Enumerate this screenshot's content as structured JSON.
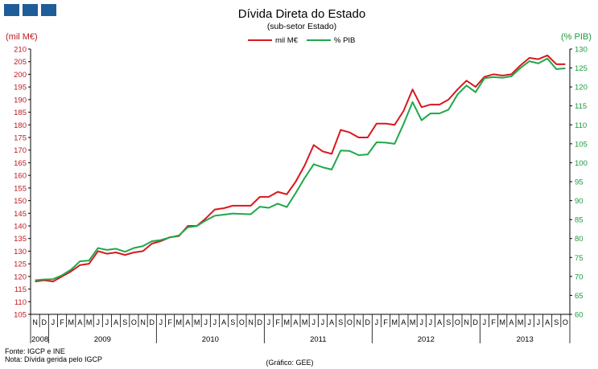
{
  "header": {
    "logo_name": "igcp-logo"
  },
  "chart_data": {
    "type": "line",
    "title": "Dívida Direta do Estado",
    "subtitle": "(sub-setor  Estado)",
    "ylabel_left": "(mil M€)",
    "ylabel_right": "(% PIB)",
    "ylim_left": [
      105,
      210
    ],
    "ylim_right": [
      60,
      130
    ],
    "yticks_left": [
      105,
      110,
      115,
      120,
      125,
      130,
      135,
      140,
      145,
      150,
      155,
      160,
      165,
      170,
      175,
      180,
      185,
      190,
      195,
      200,
      205,
      210
    ],
    "yticks_right": [
      60,
      65,
      70,
      75,
      80,
      85,
      90,
      95,
      100,
      105,
      110,
      115,
      120,
      125,
      130
    ],
    "legend_placement": "top",
    "month_labels": [
      "N",
      "D",
      "J",
      "F",
      "M",
      "A",
      "M",
      "J",
      "J",
      "A",
      "S",
      "O",
      "N",
      "D",
      "J",
      "F",
      "M",
      "A",
      "M",
      "J",
      "J",
      "A",
      "S",
      "O",
      "N",
      "D",
      "J",
      "F",
      "M",
      "A",
      "M",
      "J",
      "J",
      "A",
      "S",
      "O",
      "N",
      "D",
      "J",
      "F",
      "M",
      "A",
      "M",
      "J",
      "J",
      "A",
      "S",
      "O",
      "N",
      "D",
      "J",
      "F",
      "M",
      "A",
      "M",
      "J",
      "J",
      "A",
      "S",
      "O"
    ],
    "year_groups": [
      {
        "label": "2008",
        "count": 2
      },
      {
        "label": "2009",
        "count": 12
      },
      {
        "label": "2010",
        "count": 12
      },
      {
        "label": "2011",
        "count": 12
      },
      {
        "label": "2012",
        "count": 12
      },
      {
        "label": "2013",
        "count": 10
      }
    ],
    "series": [
      {
        "name": "mil M€",
        "axis": "left",
        "color": "#d9181e",
        "values": [
          118,
          118.5,
          118,
          120,
          122,
          124.5,
          125,
          130,
          129,
          129.5,
          128.5,
          129.5,
          130,
          133,
          134,
          135.5,
          136,
          140,
          140,
          143,
          146.5,
          147,
          148,
          148,
          148,
          151.5,
          151.5,
          153.5,
          152.5,
          157.5,
          164,
          172,
          169.5,
          168.5,
          178,
          177,
          175,
          175,
          180.5,
          180.5,
          180,
          185.5,
          194,
          187,
          188,
          188,
          190,
          194,
          197.5,
          195,
          199,
          200,
          199.5,
          200,
          203.5,
          206.5,
          206,
          207.5,
          204,
          204
        ]
      },
      {
        "name": "% PIB",
        "axis": "right",
        "color": "#1fa84a",
        "values": [
          69,
          69.2,
          69.3,
          70.3,
          71.8,
          74,
          74.2,
          77.5,
          77,
          77.3,
          76.5,
          77.5,
          78,
          79.3,
          79.6,
          80.3,
          80.8,
          83,
          83.3,
          84.8,
          86,
          86.3,
          86.6,
          86.5,
          86.4,
          88.4,
          88.1,
          89.2,
          88.3,
          92,
          96,
          99.6,
          98.8,
          98.2,
          103.2,
          103.1,
          102,
          102.2,
          105.4,
          105.3,
          105,
          110.2,
          116,
          111.2,
          113,
          113,
          114,
          118,
          120.4,
          118.6,
          122.3,
          122.6,
          122.4,
          122.8,
          125,
          126.8,
          126.2,
          127.5,
          124.7,
          124.9
        ]
      }
    ]
  },
  "footer": {
    "source": "Fonte: IGCP e INE",
    "note": "Nota: Dívida gerida pelo IGCP",
    "credit": "(Gráfico: GEE)"
  }
}
